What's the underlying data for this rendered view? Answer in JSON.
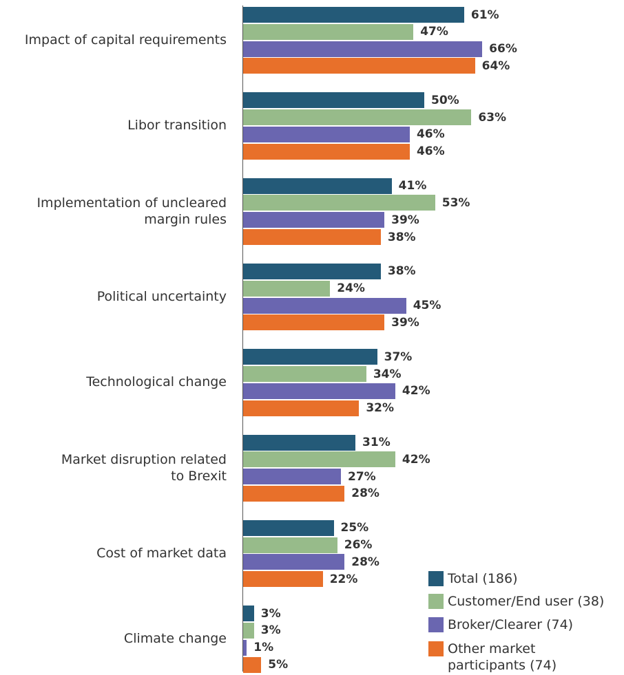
{
  "chart_data": {
    "type": "bar",
    "orientation": "horizontal",
    "categories": [
      "Impact of capital requirements",
      "Libor transition",
      "Implementation of uncleared\nmargin rules",
      "Political uncertainty",
      "Technological change",
      "Market disruption related\nto Brexit",
      "Cost of market data",
      "Climate change"
    ],
    "xlim": [
      0,
      100
    ],
    "series": [
      {
        "name": "Total (186)",
        "color": "#245a78",
        "values": [
          61,
          50,
          41,
          38,
          37,
          31,
          25,
          3
        ],
        "value_labels": [
          "61%",
          "50%",
          "41%",
          "38%",
          "37%",
          "31%",
          "25%",
          "3%"
        ]
      },
      {
        "name": "Customer/End user (38)",
        "color": "#97bb8a",
        "values": [
          47,
          63,
          53,
          24,
          34,
          42,
          26,
          3
        ],
        "value_labels": [
          "47%",
          "63%",
          "53%",
          "24%",
          "34%",
          "42%",
          "26%",
          "3%"
        ]
      },
      {
        "name": "Broker/Clearer (74)",
        "color": "#6a66b0",
        "values": [
          66,
          46,
          39,
          45,
          42,
          27,
          28,
          1
        ],
        "value_labels": [
          "66%",
          "46%",
          "39%",
          "45%",
          "42%",
          "27%",
          "28%",
          "1%"
        ]
      },
      {
        "name": "Other market\nparticipants (74)",
        "color": "#e8702a",
        "values": [
          64,
          46,
          38,
          39,
          32,
          28,
          22,
          5
        ],
        "value_labels": [
          "64%",
          "46%",
          "38%",
          "39%",
          "32%",
          "28%",
          "22%",
          "5%"
        ]
      }
    ],
    "legend": "bottom-right"
  }
}
